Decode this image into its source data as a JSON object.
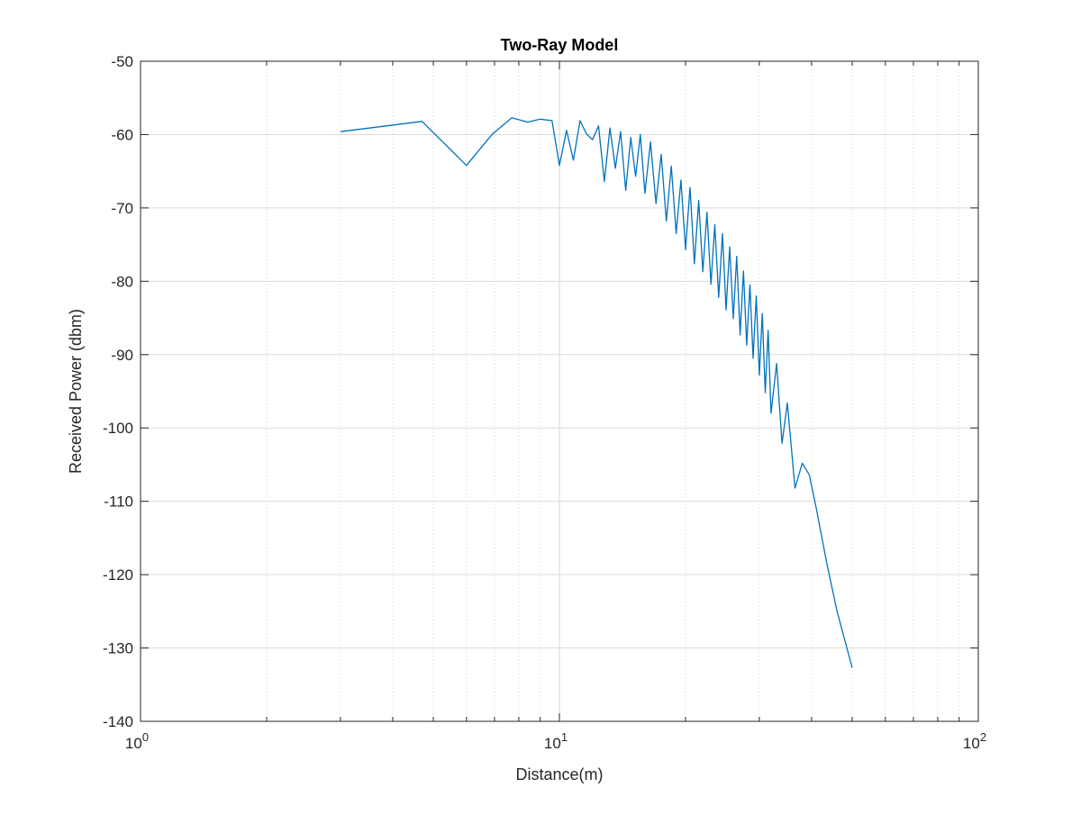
{
  "chart_data": {
    "type": "line",
    "title": "Two-Ray Model",
    "xlabel": "Distance(m)",
    "ylabel": "Received Power (dbm)",
    "x_scale": "log",
    "xlim": [
      1,
      100
    ],
    "ylim": [
      -140,
      -50
    ],
    "x_ticks": [
      {
        "value": 1,
        "base": "10",
        "exp": "0"
      },
      {
        "value": 10,
        "base": "10",
        "exp": "1"
      },
      {
        "value": 100,
        "base": "10",
        "exp": "2"
      }
    ],
    "y_ticks": [
      -50,
      -60,
      -70,
      -80,
      -90,
      -100,
      -110,
      -120,
      -130,
      -140
    ],
    "grid": true,
    "minor_grid_x": true,
    "line_color": "#0072bd",
    "series": [
      {
        "name": "",
        "x": [
          3.0,
          4.7,
          6.0,
          6.9,
          7.7,
          8.4,
          9.0,
          9.6,
          10.0,
          10.4,
          10.8,
          11.2,
          11.6,
          12.0,
          12.4,
          12.8,
          13.2,
          13.6,
          14.0,
          14.4,
          14.8,
          15.2,
          15.6,
          16.0,
          16.5,
          17.0,
          17.5,
          18.0,
          18.5,
          19.0,
          19.5,
          20.0,
          20.5,
          21.0,
          21.5,
          22.0,
          22.5,
          23.0,
          23.5,
          24.0,
          24.5,
          25.0,
          25.5,
          26.0,
          26.5,
          27.0,
          27.5,
          28.0,
          28.5,
          29.0,
          29.5,
          30.0,
          30.5,
          31.0,
          31.5,
          32.0,
          33.0,
          34.0,
          35.0,
          36.5,
          38.0,
          39.5,
          41.0,
          43.5,
          46.0,
          50.0
        ],
        "y": [
          -59.6,
          -58.2,
          -64.2,
          -60.0,
          -57.7,
          -58.3,
          -57.9,
          -58.1,
          -64.2,
          -59.4,
          -63.5,
          -58.1,
          -59.9,
          -60.7,
          -58.8,
          -66.4,
          -59.1,
          -64.6,
          -59.6,
          -67.6,
          -60.4,
          -65.7,
          -60.0,
          -68.0,
          -61.0,
          -69.4,
          -62.7,
          -71.8,
          -64.3,
          -73.5,
          -66.2,
          -75.7,
          -67.2,
          -77.6,
          -69.0,
          -78.7,
          -70.6,
          -80.4,
          -72.3,
          -82.2,
          -73.5,
          -83.9,
          -75.3,
          -85.1,
          -76.6,
          -87.3,
          -78.6,
          -88.7,
          -80.5,
          -90.5,
          -82.0,
          -92.8,
          -84.4,
          -95.2,
          -86.7,
          -98.0,
          -91.2,
          -102.1,
          -96.6,
          -108.2,
          -104.8,
          -106.4,
          -110.8,
          -118.5,
          -125.0,
          -132.7
        ]
      }
    ]
  }
}
